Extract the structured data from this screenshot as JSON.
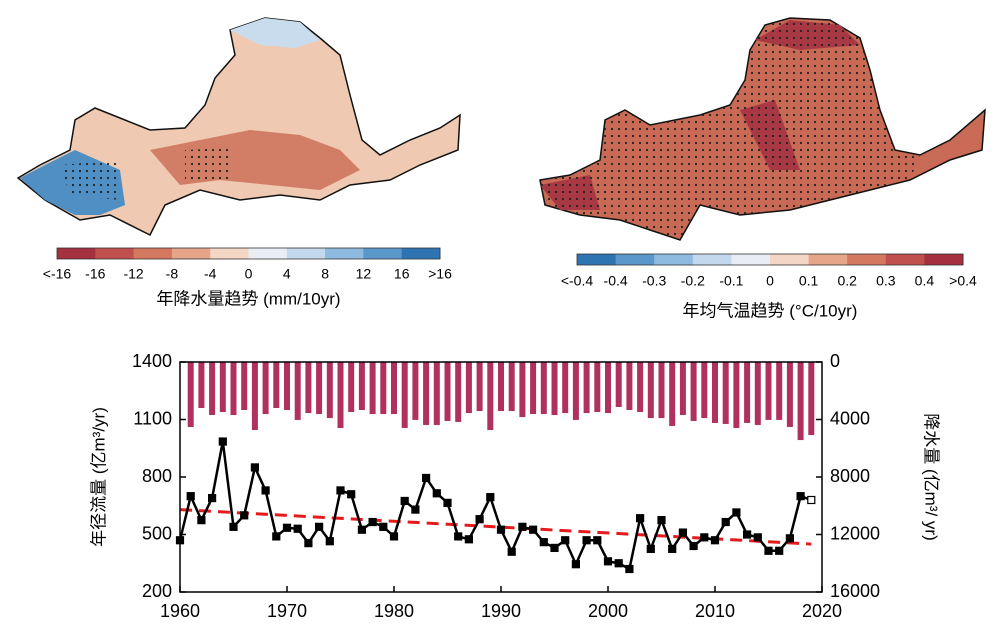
{
  "chart_data": [
    {
      "type": "map",
      "label": "年降水量趋势 (mm/10yr)",
      "colorbar_labels": [
        "<-16",
        "-16",
        "-12",
        "-8",
        "-4",
        "0",
        "4",
        "8",
        "12",
        "16",
        ">16"
      ],
      "colorbar_colors": [
        "#a5303f",
        "#c0504d",
        "#d4785f",
        "#e6a588",
        "#f4d6c5",
        "#e9eef5",
        "#c3d8ec",
        "#8fbadf",
        "#5a98cc",
        "#2e74b2"
      ]
    },
    {
      "type": "map",
      "label": "年均气温趋势 (°C/10yr)",
      "colorbar_labels": [
        "<-0.4",
        "-0.4",
        "-0.3",
        "-0.2",
        "-0.1",
        "0",
        "0.1",
        "0.2",
        "0.3",
        "0.4",
        ">0.4"
      ],
      "colorbar_colors": [
        "#2e74b2",
        "#5a98cc",
        "#8fbadf",
        "#c3d8ec",
        "#e9eef5",
        "#f4d6c5",
        "#e6a588",
        "#d4785f",
        "#c0504d",
        "#a5303f"
      ]
    },
    {
      "type": "combo",
      "ylabel": "年径流量 (亿m³/yr)",
      "y2label": "降水量 (亿m³/ yr)",
      "x": [
        1960,
        1961,
        1962,
        1963,
        1964,
        1965,
        1966,
        1967,
        1968,
        1969,
        1970,
        1971,
        1972,
        1973,
        1974,
        1975,
        1976,
        1977,
        1978,
        1979,
        1980,
        1981,
        1982,
        1983,
        1984,
        1985,
        1986,
        1987,
        1988,
        1989,
        1990,
        1991,
        1992,
        1993,
        1994,
        1995,
        1996,
        1997,
        1998,
        1999,
        2000,
        2001,
        2002,
        2003,
        2004,
        2005,
        2006,
        2007,
        2008,
        2009,
        2010,
        2011,
        2012,
        2013,
        2014,
        2015,
        2016,
        2017,
        2018,
        2019
      ],
      "series": [
        {
          "type": "bar",
          "axis": "y2",
          "color": "#b0305f",
          "values": [
            null,
            4520,
            3200,
            3690,
            3480,
            3690,
            3340,
            4730,
            3620,
            3200,
            3340,
            4030,
            3550,
            3620,
            3900,
            4590,
            3480,
            3340,
            3620,
            3620,
            3620,
            4590,
            4030,
            4380,
            4380,
            4100,
            4170,
            3550,
            3410,
            4730,
            3410,
            3410,
            3830,
            3620,
            3620,
            3690,
            3550,
            4030,
            3550,
            3480,
            3550,
            3130,
            3340,
            3480,
            3900,
            3900,
            4450,
            3690,
            4100,
            3900,
            4240,
            4310,
            4590,
            4240,
            4380,
            4030,
            4030,
            4520,
            5430,
            5080
          ]
        },
        {
          "type": "line",
          "color": "#000000",
          "values": [
            470,
            700,
            575,
            690,
            985,
            540,
            600,
            850,
            730,
            490,
            535,
            530,
            455,
            540,
            465,
            730,
            710,
            525,
            565,
            540,
            490,
            675,
            630,
            795,
            715,
            665,
            490,
            475,
            580,
            695,
            525,
            410,
            540,
            525,
            460,
            430,
            470,
            345,
            470,
            470,
            360,
            350,
            320,
            585,
            425,
            575,
            425,
            510,
            440,
            485,
            470,
            565,
            615,
            500,
            485,
            415,
            415,
            480,
            700,
            680
          ]
        }
      ],
      "trend": {
        "x": [
          1960,
          2019
        ],
        "values": [
          630,
          450
        ],
        "color": "#e41a1c"
      },
      "xlim": [
        1960,
        2020
      ],
      "xticks": [
        1960,
        1970,
        1980,
        1990,
        2000,
        2010,
        2020
      ],
      "ylim": [
        200,
        1400
      ],
      "yticks": [
        200,
        500,
        800,
        1100,
        1400
      ],
      "y2lim": [
        16000,
        0
      ],
      "y2ticks": [
        0,
        4000,
        8000,
        12000,
        16000
      ]
    }
  ]
}
